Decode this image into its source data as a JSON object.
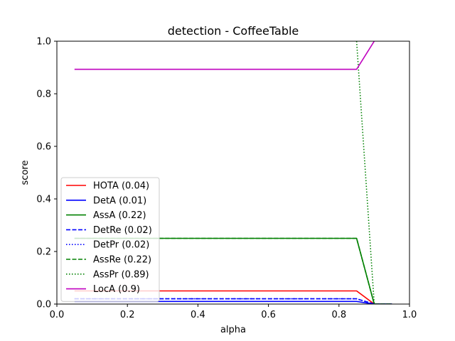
{
  "chart_data": {
    "type": "line",
    "title": "detection - CoffeeTable",
    "xlabel": "alpha",
    "ylabel": "score",
    "xlim": [
      0.0,
      1.0
    ],
    "ylim": [
      0.0,
      1.0
    ],
    "xticks": [
      "0.0",
      "0.2",
      "0.4",
      "0.6",
      "0.8",
      "1.0"
    ],
    "yticks": [
      "0.0",
      "0.2",
      "0.4",
      "0.6",
      "0.8",
      "1.0"
    ],
    "grid": false,
    "legend_position": "lower-left",
    "series": [
      {
        "name": "HOTA (0.04)",
        "color": "#ff0000",
        "style": "solid",
        "x": [
          0.05,
          0.85,
          0.9,
          0.95
        ],
        "y": [
          0.05,
          0.05,
          0.0,
          0.0
        ]
      },
      {
        "name": "DetA (0.01)",
        "color": "#0000ff",
        "style": "solid",
        "x": [
          0.05,
          0.85,
          0.9,
          0.95
        ],
        "y": [
          0.01,
          0.01,
          0.0,
          0.0
        ]
      },
      {
        "name": "AssA (0.22)",
        "color": "#008000",
        "style": "solid",
        "x": [
          0.05,
          0.85,
          0.9,
          0.95
        ],
        "y": [
          0.25,
          0.25,
          0.0,
          0.0
        ]
      },
      {
        "name": "DetRe (0.02)",
        "color": "#0000ff",
        "style": "dashed",
        "x": [
          0.05,
          0.85,
          0.9,
          0.95
        ],
        "y": [
          0.02,
          0.02,
          0.0,
          0.0
        ]
      },
      {
        "name": "DetPr (0.02)",
        "color": "#0000ff",
        "style": "dotted",
        "x": [
          0.05,
          0.85,
          0.9,
          0.95
        ],
        "y": [
          0.02,
          0.02,
          0.0,
          0.0
        ]
      },
      {
        "name": "AssRe (0.22)",
        "color": "#008000",
        "style": "dashed",
        "x": [
          0.05,
          0.85,
          0.9,
          0.95
        ],
        "y": [
          0.25,
          0.25,
          0.0,
          0.0
        ]
      },
      {
        "name": "AssPr (0.89)",
        "color": "#008000",
        "style": "dotted",
        "x": [
          0.85,
          0.9,
          0.95
        ],
        "y": [
          1.0,
          0.0,
          0.0
        ]
      },
      {
        "name": "LocA (0.9)",
        "color": "#bf00bf",
        "style": "solid",
        "x": [
          0.05,
          0.85,
          0.9
        ],
        "y": [
          0.893,
          0.893,
          1.0
        ]
      }
    ]
  }
}
